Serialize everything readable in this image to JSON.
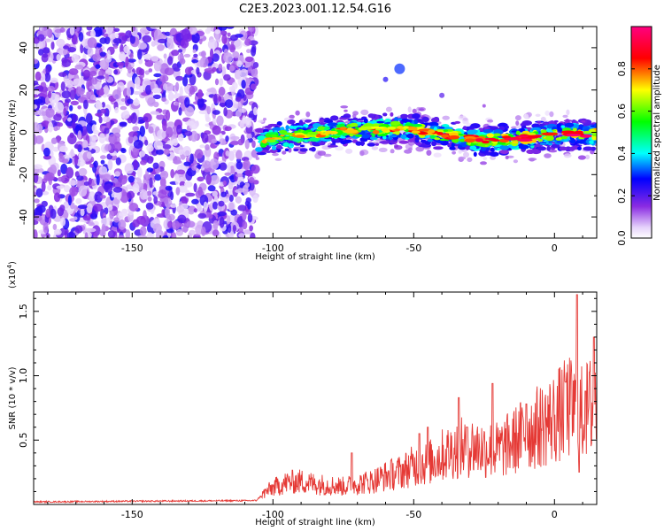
{
  "title": "C2E3.2023.001.12.54.G16",
  "chart_data": [
    {
      "type": "heatmap",
      "xlabel": "Height of straight line (km)",
      "ylabel": "Frequency (Hz)",
      "xlim": [
        -185,
        15
      ],
      "ylim": [
        -50,
        50
      ],
      "x_ticks": [
        -150,
        -100,
        -50,
        0
      ],
      "x_tick_labels": [
        "-150",
        "-100",
        "-50",
        "0"
      ],
      "y_ticks": [
        -40,
        -20,
        0,
        20,
        40
      ],
      "y_tick_labels": [
        "-40",
        "-20",
        "0",
        "20",
        "40"
      ],
      "signal_band": {
        "x": [
          -106,
          -95,
          -85,
          -75,
          -65,
          -55,
          -45,
          -35,
          -25,
          -15,
          -5,
          5,
          15
        ],
        "center_freq": [
          -4,
          -2,
          -1,
          1,
          1,
          2,
          0,
          -2,
          -4,
          -3,
          -2,
          -1,
          -1
        ]
      },
      "colorbar": {
        "label": "Normalized spectral amplitude",
        "range": [
          0,
          1
        ],
        "ticks": [
          0.0,
          0.2,
          0.4,
          0.6,
          0.8
        ],
        "tick_labels": [
          "0.0",
          "0.2",
          "0.4",
          "0.6",
          "0.8"
        ]
      }
    },
    {
      "type": "line",
      "xlabel": "Height of straight line (km)",
      "ylabel": "SNR (10 * v/v)",
      "y_multiplier_label": "(x10",
      "y_multiplier_exp": "4",
      "y_multiplier_close": ")",
      "xlim": [
        -185,
        15
      ],
      "ylim": [
        0,
        16500
      ],
      "x_ticks": [
        -150,
        -100,
        -50,
        0
      ],
      "x_tick_labels": [
        "-150",
        "-100",
        "-50",
        "0"
      ],
      "y_ticks": [
        5000,
        10000,
        15000
      ],
      "y_tick_labels": [
        "0.5",
        "1.0",
        "1.5"
      ],
      "color": "#e53935",
      "series": [
        {
          "x": [
            -185,
            -150,
            -106,
            -103,
            -100,
            -95,
            -90,
            -85,
            -80,
            -75,
            -70,
            -65,
            -60,
            -55,
            -50,
            -45,
            -40,
            -35,
            -30,
            -25,
            -20,
            -15,
            -10,
            -5,
            0,
            5,
            10,
            15
          ],
          "values": [
            200,
            250,
            300,
            900,
            1300,
            1700,
            1800,
            1600,
            1500,
            1400,
            1600,
            1800,
            2200,
            2500,
            3000,
            3200,
            3800,
            4300,
            4500,
            4300,
            4200,
            4800,
            5600,
            6100,
            6700,
            7500,
            7000,
            8000
          ],
          "spikes": [
            {
              "x": -72,
              "y": 4000
            },
            {
              "x": -48,
              "y": 5500
            },
            {
              "x": -45,
              "y": 6000
            },
            {
              "x": -34,
              "y": 8300
            },
            {
              "x": -31,
              "y": 6000
            },
            {
              "x": -22,
              "y": 9400
            },
            {
              "x": -10,
              "y": 7800
            },
            {
              "x": 4,
              "y": 9500
            },
            {
              "x": 8,
              "y": 16300
            },
            {
              "x": 8.8,
              "y": 2500
            },
            {
              "x": 11,
              "y": 8800
            },
            {
              "x": 14,
              "y": 13000
            }
          ]
        }
      ]
    }
  ]
}
